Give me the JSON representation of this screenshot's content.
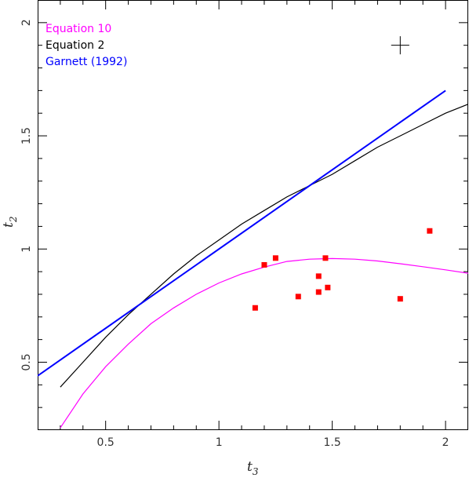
{
  "chart_data": {
    "type": "line",
    "xlabel": "t",
    "xlabel_sub": "3",
    "ylabel": "t",
    "ylabel_sub": "2",
    "xlim": [
      0.2,
      2.1
    ],
    "ylim": [
      0.2,
      2.1
    ],
    "xticks": [
      0.5,
      1,
      1.5,
      2
    ],
    "xtick_labels": [
      "0.5",
      "1",
      "1.5",
      "2"
    ],
    "yticks": [
      0.5,
      1,
      1.5,
      2
    ],
    "ytick_labels": [
      "0.5",
      "1",
      "1.5",
      "2"
    ],
    "legend_position": "top-left",
    "series": [
      {
        "name": "Equation 10",
        "color": "#ff00ff",
        "kind": "line",
        "x": [
          0.3,
          0.4,
          0.5,
          0.6,
          0.7,
          0.8,
          0.9,
          1.0,
          1.1,
          1.2,
          1.3,
          1.4,
          1.5,
          1.6,
          1.7,
          1.8,
          1.9,
          2.0,
          2.1
        ],
        "y": [
          0.21,
          0.36,
          0.48,
          0.58,
          0.67,
          0.74,
          0.8,
          0.85,
          0.89,
          0.92,
          0.945,
          0.955,
          0.958,
          0.955,
          0.947,
          0.935,
          0.922,
          0.908,
          0.893
        ]
      },
      {
        "name": "Equation 2",
        "color": "#000000",
        "kind": "line",
        "x": [
          0.3,
          0.4,
          0.5,
          0.6,
          0.7,
          0.8,
          0.9,
          1.0,
          1.1,
          1.2,
          1.3,
          1.4,
          1.5,
          1.6,
          1.7,
          1.8,
          1.9,
          2.0,
          2.1
        ],
        "y": [
          0.39,
          0.5,
          0.61,
          0.71,
          0.8,
          0.89,
          0.97,
          1.04,
          1.11,
          1.17,
          1.23,
          1.28,
          1.33,
          1.39,
          1.45,
          1.5,
          1.55,
          1.6,
          1.64
        ]
      },
      {
        "name": "Garnett (1992)",
        "color": "#0000ff",
        "kind": "line",
        "x": [
          0.2,
          2.0
        ],
        "y": [
          0.44,
          1.7
        ]
      }
    ],
    "points": {
      "color": "#ff0000",
      "x": [
        1.16,
        1.2,
        1.25,
        1.35,
        1.44,
        1.44,
        1.47,
        1.48,
        1.8,
        1.93
      ],
      "y": [
        0.74,
        0.93,
        0.96,
        0.79,
        0.88,
        0.81,
        0.96,
        0.83,
        0.78,
        1.08
      ]
    },
    "error_cross": {
      "x": 1.8,
      "y": 1.9,
      "dx": 0.04,
      "dy": 0.04
    }
  }
}
